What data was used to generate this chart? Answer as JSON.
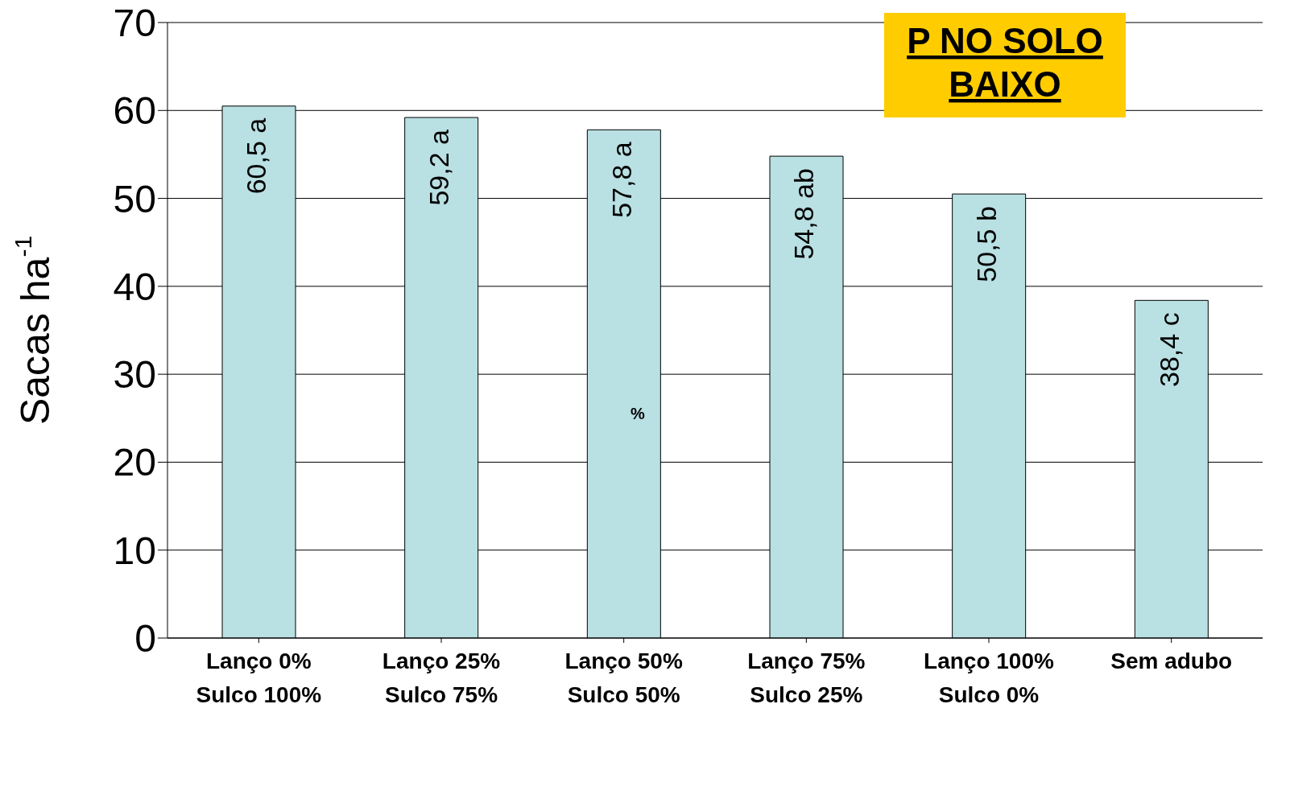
{
  "chart_data": {
    "type": "bar",
    "title": "P NO SOLO\nBAIXO",
    "ylabel": "Sacas ha$^{-1}$",
    "categories": [
      "Lanço 0%\nSulco 100%",
      "Lanço 25%\nSulco 75%",
      "Lanço 50%\nSulco 50%",
      "Lanço 75%\nSulco 25%",
      "Lanço 100%\nSulco 0%",
      "Sem adubo"
    ],
    "values": [
      60.5,
      59.2,
      57.8,
      54.8,
      50.5,
      38.4
    ],
    "value_labels": [
      "60,5 a",
      "59,2 a",
      "57,8 a",
      "54,8 ab",
      "50,5 b",
      "38,4 c"
    ],
    "color": "#b9e0e3",
    "ylim": [
      0,
      70
    ],
    "yticks": [
      0,
      10,
      20,
      30,
      40,
      50,
      60,
      70
    ],
    "grid": "y",
    "annotations": [
      "%"
    ]
  }
}
